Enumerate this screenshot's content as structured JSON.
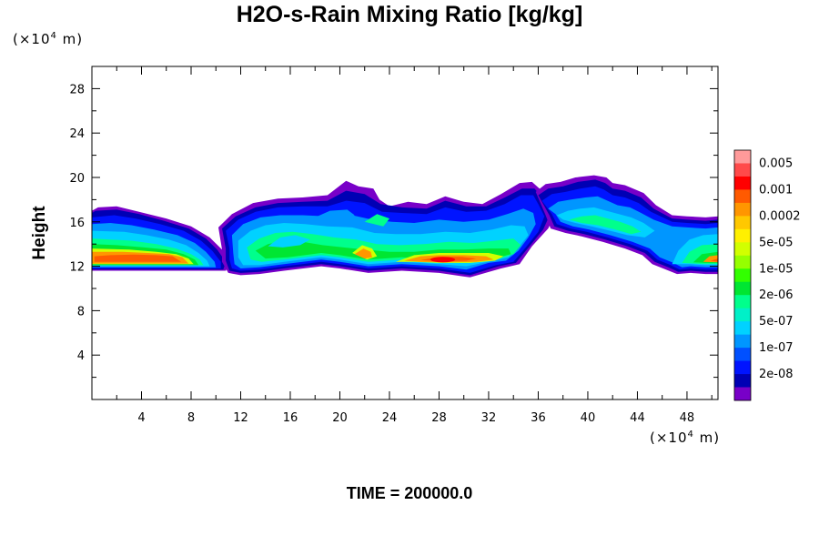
{
  "header": {
    "title": "H2O-s-Rain Mixing Ratio [kg/kg]"
  },
  "footer": {
    "time_label": "TIME = 200000.0"
  },
  "chart_data": {
    "type": "heatmap",
    "title": "H2O-s-Rain Mixing Ratio [kg/kg]",
    "xlabel": "",
    "ylabel": "Height",
    "x_unit_label": {
      "prefix": "(×10",
      "exp": "4",
      "suffix": " m)"
    },
    "y_unit_label": {
      "prefix": "(×10",
      "exp": "4",
      "suffix": " m)"
    },
    "xlim": [
      0,
      50.5
    ],
    "ylim": [
      0,
      30
    ],
    "x_ticks": [
      4,
      8,
      12,
      16,
      20,
      24,
      28,
      32,
      36,
      40,
      44,
      48
    ],
    "y_ticks": [
      4,
      8,
      12,
      16,
      20,
      24,
      28
    ],
    "grid": false,
    "legend_placement": "right",
    "colorbar": {
      "colors": [
        "#ff9a9a",
        "#ff4a4a",
        "#ff0000",
        "#ff5a00",
        "#ff9600",
        "#ffc800",
        "#fff000",
        "#d2ff00",
        "#96ff00",
        "#32ff00",
        "#00e632",
        "#00ff8c",
        "#00f0c8",
        "#00d2ff",
        "#0096ff",
        "#0050ff",
        "#0014ff",
        "#0000b4",
        "#7800c8"
      ],
      "labels": [
        "0.005",
        "0.001",
        "0.0002",
        "5e-05",
        "1e-05",
        "2e-06",
        "5e-07",
        "1e-07",
        "2e-08"
      ]
    },
    "regions": [
      {
        "name": "left cloud",
        "x": [
          0.0,
          12.0
        ],
        "y": [
          11.0,
          18.0
        ],
        "peak_level": "0.001"
      },
      {
        "name": "central cloud",
        "x": [
          11.0,
          36.0
        ],
        "y": [
          11.0,
          20.0
        ],
        "peak_level": "0.001"
      },
      {
        "name": "right cloud",
        "x": [
          36.0,
          51.0
        ],
        "y": [
          11.0,
          20.0
        ],
        "peak_level": "0.001"
      }
    ]
  }
}
